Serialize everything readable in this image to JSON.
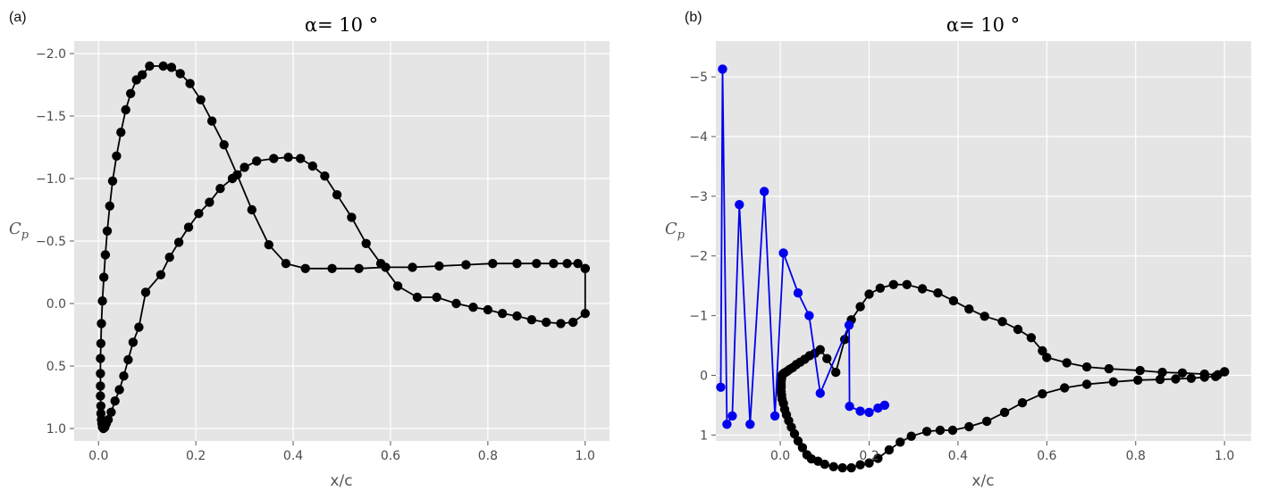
{
  "chart_data": [
    {
      "panel": "(a)",
      "type": "line",
      "title": "α= 10 °",
      "xlabel": "x/c",
      "ylabel": "Cp",
      "xlim": [
        -0.05,
        1.05
      ],
      "ylim": [
        1.1,
        -2.1
      ],
      "y_inverted": true,
      "grid": true,
      "xticks": [
        0.0,
        0.2,
        0.4,
        0.6,
        0.8,
        1.0
      ],
      "xtick_labels": [
        "0.0",
        "0.2",
        "0.4",
        "0.6",
        "0.8",
        "1.0"
      ],
      "yticks": [
        -2.0,
        -1.5,
        -1.0,
        -0.5,
        0.0,
        0.5,
        1.0
      ],
      "ytick_labels": [
        "−2.0",
        "−1.5",
        "−1.0",
        "−0.5",
        "0.0",
        "0.5",
        "1.0"
      ],
      "series": [
        {
          "color": "#000000",
          "points": [
            [
              1.0,
              -0.28
            ],
            [
              0.985,
              -0.32
            ],
            [
              0.963,
              -0.32
            ],
            [
              0.935,
              -0.32
            ],
            [
              0.9,
              -0.32
            ],
            [
              0.86,
              -0.32
            ],
            [
              0.81,
              -0.32
            ],
            [
              0.755,
              -0.31
            ],
            [
              0.7,
              -0.3
            ],
            [
              0.645,
              -0.29
            ],
            [
              0.59,
              -0.29
            ],
            [
              0.535,
              -0.28
            ],
            [
              0.48,
              -0.28
            ],
            [
              0.425,
              -0.28
            ],
            [
              0.385,
              -0.32
            ],
            [
              0.35,
              -0.47
            ],
            [
              0.315,
              -0.75
            ],
            [
              0.285,
              -1.03
            ],
            [
              0.258,
              -1.27
            ],
            [
              0.233,
              -1.46
            ],
            [
              0.21,
              -1.63
            ],
            [
              0.188,
              -1.76
            ],
            [
              0.168,
              -1.84
            ],
            [
              0.15,
              -1.89
            ],
            [
              0.133,
              -1.9
            ],
            [
              0.105,
              -1.9
            ],
            [
              0.09,
              -1.83
            ],
            [
              0.078,
              -1.79
            ],
            [
              0.066,
              -1.68
            ],
            [
              0.056,
              -1.55
            ],
            [
              0.046,
              -1.37
            ],
            [
              0.037,
              -1.18
            ],
            [
              0.029,
              -0.98
            ],
            [
              0.023,
              -0.78
            ],
            [
              0.018,
              -0.58
            ],
            [
              0.014,
              -0.39
            ],
            [
              0.011,
              -0.21
            ],
            [
              0.008,
              -0.02
            ],
            [
              0.006,
              0.16
            ],
            [
              0.005,
              0.32
            ],
            [
              0.004,
              0.44
            ],
            [
              0.004,
              0.56
            ],
            [
              0.004,
              0.66
            ],
            [
              0.004,
              0.74
            ],
            [
              0.005,
              0.82
            ],
            [
              0.005,
              0.88
            ],
            [
              0.006,
              0.93
            ],
            [
              0.007,
              0.96
            ],
            [
              0.008,
              0.99
            ],
            [
              0.01,
              1.0
            ],
            [
              0.013,
              0.99
            ],
            [
              0.016,
              0.96
            ],
            [
              0.02,
              0.93
            ],
            [
              0.026,
              0.87
            ],
            [
              0.034,
              0.78
            ],
            [
              0.043,
              0.69
            ],
            [
              0.052,
              0.58
            ],
            [
              0.061,
              0.45
            ],
            [
              0.071,
              0.31
            ],
            [
              0.083,
              0.19
            ],
            [
              0.097,
              -0.09
            ],
            [
              0.128,
              -0.23
            ],
            [
              0.146,
              -0.37
            ],
            [
              0.165,
              -0.49
            ],
            [
              0.185,
              -0.61
            ],
            [
              0.206,
              -0.72
            ],
            [
              0.228,
              -0.81
            ],
            [
              0.25,
              -0.92
            ],
            [
              0.275,
              -1.0
            ],
            [
              0.3,
              -1.09
            ],
            [
              0.325,
              -1.14
            ],
            [
              0.36,
              -1.16
            ],
            [
              0.39,
              -1.17
            ],
            [
              0.415,
              -1.16
            ],
            [
              0.44,
              -1.1
            ],
            [
              0.465,
              -1.02
            ],
            [
              0.49,
              -0.87
            ],
            [
              0.52,
              -0.69
            ],
            [
              0.55,
              -0.48
            ],
            [
              0.58,
              -0.32
            ],
            [
              0.615,
              -0.14
            ],
            [
              0.655,
              -0.05
            ],
            [
              0.695,
              -0.05
            ],
            [
              0.735,
              0.0
            ],
            [
              0.77,
              0.03
            ],
            [
              0.8,
              0.05
            ],
            [
              0.83,
              0.08
            ],
            [
              0.86,
              0.1
            ],
            [
              0.89,
              0.13
            ],
            [
              0.92,
              0.15
            ],
            [
              0.95,
              0.16
            ],
            [
              0.975,
              0.15
            ],
            [
              1.0,
              0.08
            ],
            [
              1.0,
              -0.28
            ]
          ]
        }
      ]
    },
    {
      "panel": "(b)",
      "type": "line",
      "title": "α= 10 °",
      "xlabel": "x/c",
      "ylabel": "Cp",
      "xlim": [
        -0.145,
        1.06
      ],
      "ylim": [
        1.1,
        -5.6
      ],
      "y_inverted": true,
      "grid": true,
      "xticks": [
        0.0,
        0.2,
        0.4,
        0.6,
        0.8,
        1.0
      ],
      "xtick_labels": [
        "0.0",
        "0.2",
        "0.4",
        "0.6",
        "0.8",
        "1.0"
      ],
      "yticks": [
        -5,
        -4,
        -3,
        -2,
        -1,
        0,
        1
      ],
      "ytick_labels": [
        "−5",
        "−4",
        "−3",
        "−2",
        "−1",
        "0",
        "1"
      ],
      "series": [
        {
          "color": "#000000",
          "points": [
            [
              1.0,
              -0.06
            ],
            [
              0.98,
              0.02
            ],
            [
              0.955,
              0.03
            ],
            [
              0.925,
              0.05
            ],
            [
              0.89,
              0.06
            ],
            [
              0.855,
              0.07
            ],
            [
              0.805,
              0.08
            ],
            [
              0.75,
              0.11
            ],
            [
              0.69,
              0.15
            ],
            [
              0.64,
              0.21
            ],
            [
              0.59,
              0.31
            ],
            [
              0.545,
              0.46
            ],
            [
              0.505,
              0.62
            ],
            [
              0.465,
              0.77
            ],
            [
              0.425,
              0.86
            ],
            [
              0.388,
              0.92
            ],
            [
              0.36,
              0.92
            ],
            [
              0.33,
              0.94
            ],
            [
              0.295,
              1.02
            ],
            [
              0.27,
              1.12
            ],
            [
              0.245,
              1.25
            ],
            [
              0.22,
              1.39
            ],
            [
              0.2,
              1.47
            ],
            [
              0.18,
              1.5
            ],
            [
              0.16,
              1.55
            ],
            [
              0.14,
              1.55
            ],
            [
              0.12,
              1.53
            ],
            [
              0.1,
              1.49
            ],
            [
              0.085,
              1.44
            ],
            [
              0.07,
              1.4
            ],
            [
              0.06,
              1.33
            ],
            [
              0.05,
              1.21
            ],
            [
              0.04,
              1.1
            ],
            [
              0.032,
              0.98
            ],
            [
              0.025,
              0.87
            ],
            [
              0.019,
              0.76
            ],
            [
              0.014,
              0.66
            ],
            [
              0.01,
              0.57
            ],
            [
              0.007,
              0.47
            ],
            [
              0.004,
              0.4
            ],
            [
              0.003,
              0.33
            ],
            [
              0.002,
              0.27
            ],
            [
              0.002,
              0.2
            ],
            [
              0.002,
              0.15
            ],
            [
              0.002,
              0.1
            ],
            [
              0.003,
              0.05
            ],
            [
              0.004,
              0.0
            ],
            [
              0.006,
              -0.02
            ],
            [
              0.009,
              -0.04
            ],
            [
              0.012,
              -0.05
            ],
            [
              0.016,
              -0.07
            ],
            [
              0.021,
              -0.1
            ],
            [
              0.028,
              -0.13
            ],
            [
              0.036,
              -0.18
            ],
            [
              0.045,
              -0.22
            ],
            [
              0.055,
              -0.27
            ],
            [
              0.066,
              -0.33
            ],
            [
              0.078,
              -0.37
            ],
            [
              0.09,
              -0.43
            ],
            [
              0.105,
              -0.28
            ],
            [
              0.125,
              -0.05
            ],
            [
              0.145,
              -0.6
            ],
            [
              0.16,
              -0.93
            ],
            [
              0.18,
              -1.15
            ],
            [
              0.2,
              -1.36
            ],
            [
              0.225,
              -1.46
            ],
            [
              0.255,
              -1.52
            ],
            [
              0.285,
              -1.52
            ],
            [
              0.32,
              -1.45
            ],
            [
              0.355,
              -1.38
            ],
            [
              0.39,
              -1.25
            ],
            [
              0.425,
              -1.11
            ],
            [
              0.46,
              -0.99
            ],
            [
              0.5,
              -0.9
            ],
            [
              0.535,
              -0.77
            ],
            [
              0.565,
              -0.63
            ],
            [
              0.59,
              -0.41
            ],
            [
              0.6,
              -0.3
            ],
            [
              0.645,
              -0.21
            ],
            [
              0.69,
              -0.14
            ],
            [
              0.74,
              -0.11
            ],
            [
              0.81,
              -0.08
            ],
            [
              0.86,
              -0.05
            ],
            [
              0.905,
              -0.04
            ],
            [
              0.955,
              -0.02
            ],
            [
              0.985,
              -0.01
            ],
            [
              1.0,
              -0.06
            ]
          ]
        },
        {
          "color": "#0000ee",
          "points": [
            [
              -0.134,
              0.2
            ],
            [
              -0.13,
              -5.13
            ],
            [
              -0.12,
              0.82
            ],
            [
              -0.108,
              0.68
            ],
            [
              -0.092,
              -2.86
            ],
            [
              -0.068,
              0.82
            ],
            [
              -0.036,
              -3.08
            ],
            [
              -0.012,
              0.68
            ],
            [
              0.007,
              -2.05
            ],
            [
              0.04,
              -1.38
            ],
            [
              0.065,
              -1.0
            ],
            [
              0.09,
              0.3
            ],
            [
              0.155,
              -0.84
            ],
            [
              0.156,
              0.52
            ],
            [
              0.18,
              0.6
            ],
            [
              0.2,
              0.62
            ],
            [
              0.22,
              0.55
            ],
            [
              0.235,
              0.5
            ]
          ]
        }
      ]
    }
  ]
}
